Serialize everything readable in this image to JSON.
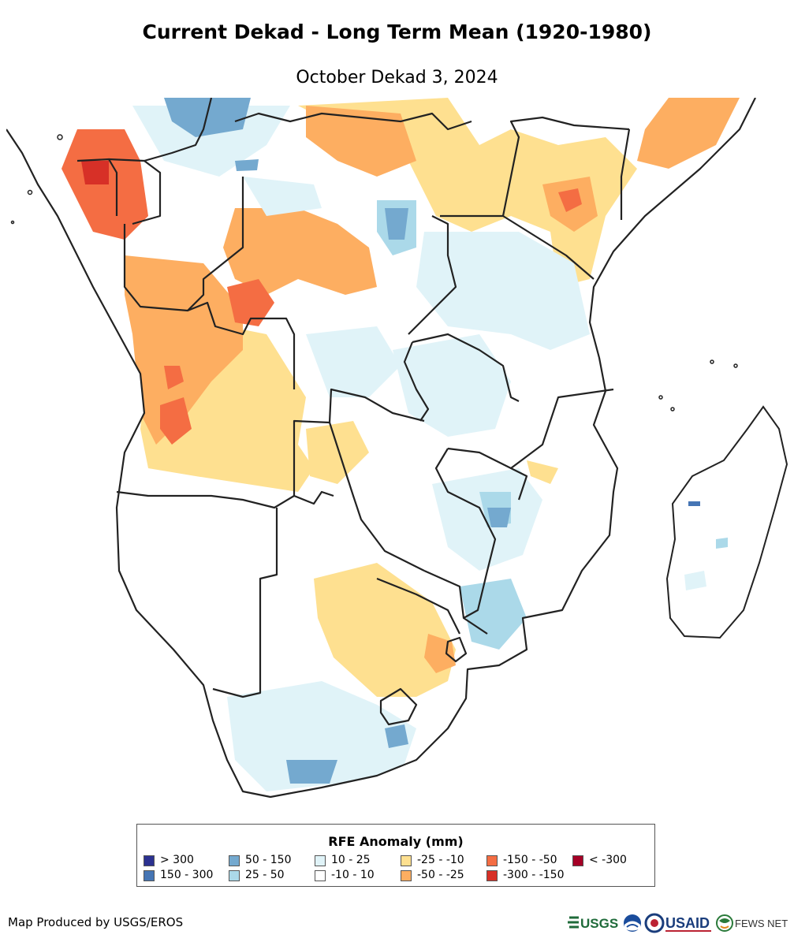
{
  "title": "Current Dekad - Long Term Mean (1920-1980)",
  "subtitle": "October Dekad 3, 2024",
  "legend": {
    "title": "RFE Anomaly (mm)",
    "items": [
      {
        "label": "> 300",
        "color": "#2b3190"
      },
      {
        "label": "150 - 300",
        "color": "#4575b4"
      },
      {
        "label": "50 - 150",
        "color": "#74a9cf"
      },
      {
        "label": "25 - 50",
        "color": "#abd9e9"
      },
      {
        "label": "10 - 25",
        "color": "#e0f3f8"
      },
      {
        "label": "-10 - 10",
        "color": "#ffffff"
      },
      {
        "label": "-25 - -10",
        "color": "#fee090"
      },
      {
        "label": "-50 - -25",
        "color": "#fdae61"
      },
      {
        "label": "-150 - -50",
        "color": "#f46d43"
      },
      {
        "label": "-300 - -150",
        "color": "#d73027"
      },
      {
        "label": "< -300",
        "color": "#a50026"
      }
    ]
  },
  "credit": "Map Produced by USGS/EROS",
  "logos": {
    "usgs": "USGS",
    "usaid": "USAID",
    "fews": "FEWS NET"
  }
}
